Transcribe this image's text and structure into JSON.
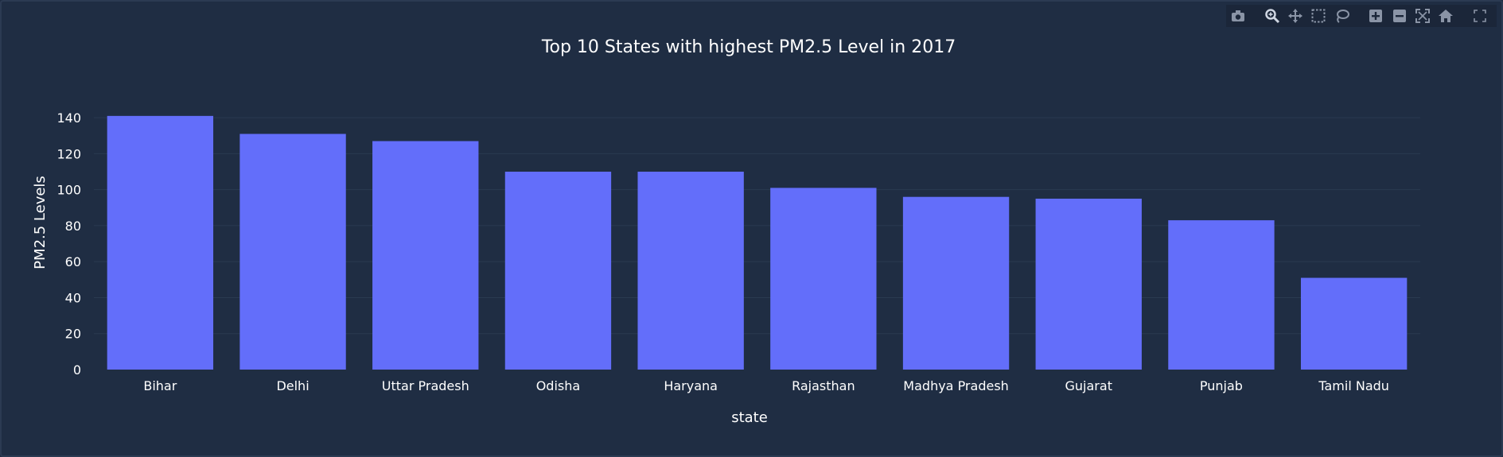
{
  "colors": {
    "bar": "#636efa",
    "background": "#1f2d43",
    "grid": "#2a3a50",
    "text": "#ffffff",
    "icon": "#8a94a6",
    "icon_active": "#cfd6e2"
  },
  "modebar": {
    "buttons": [
      {
        "name": "camera-icon"
      },
      {
        "name": "zoom-icon"
      },
      {
        "name": "pan-icon"
      },
      {
        "name": "box-select-icon"
      },
      {
        "name": "lasso-select-icon"
      },
      {
        "name": "zoom-in-icon"
      },
      {
        "name": "zoom-out-icon"
      },
      {
        "name": "autoscale-icon"
      },
      {
        "name": "reset-axes-icon"
      },
      {
        "name": "fullscreen-icon"
      }
    ]
  },
  "chart_data": {
    "type": "bar",
    "title": "Top 10 States with highest PM2.5 Level in 2017",
    "xlabel": "state",
    "ylabel": "PM2.5 Levels",
    "categories": [
      "Bihar",
      "Delhi",
      "Uttar Pradesh",
      "Odisha",
      "Haryana",
      "Rajasthan",
      "Madhya Pradesh",
      "Gujarat",
      "Punjab",
      "Tamil Nadu"
    ],
    "values": [
      141,
      131,
      127,
      110,
      110,
      101,
      96,
      95,
      83,
      51
    ],
    "ylim": [
      0,
      148
    ],
    "yticks": [
      0,
      20,
      40,
      60,
      80,
      100,
      120,
      140
    ],
    "grid": true,
    "legend": "none"
  }
}
